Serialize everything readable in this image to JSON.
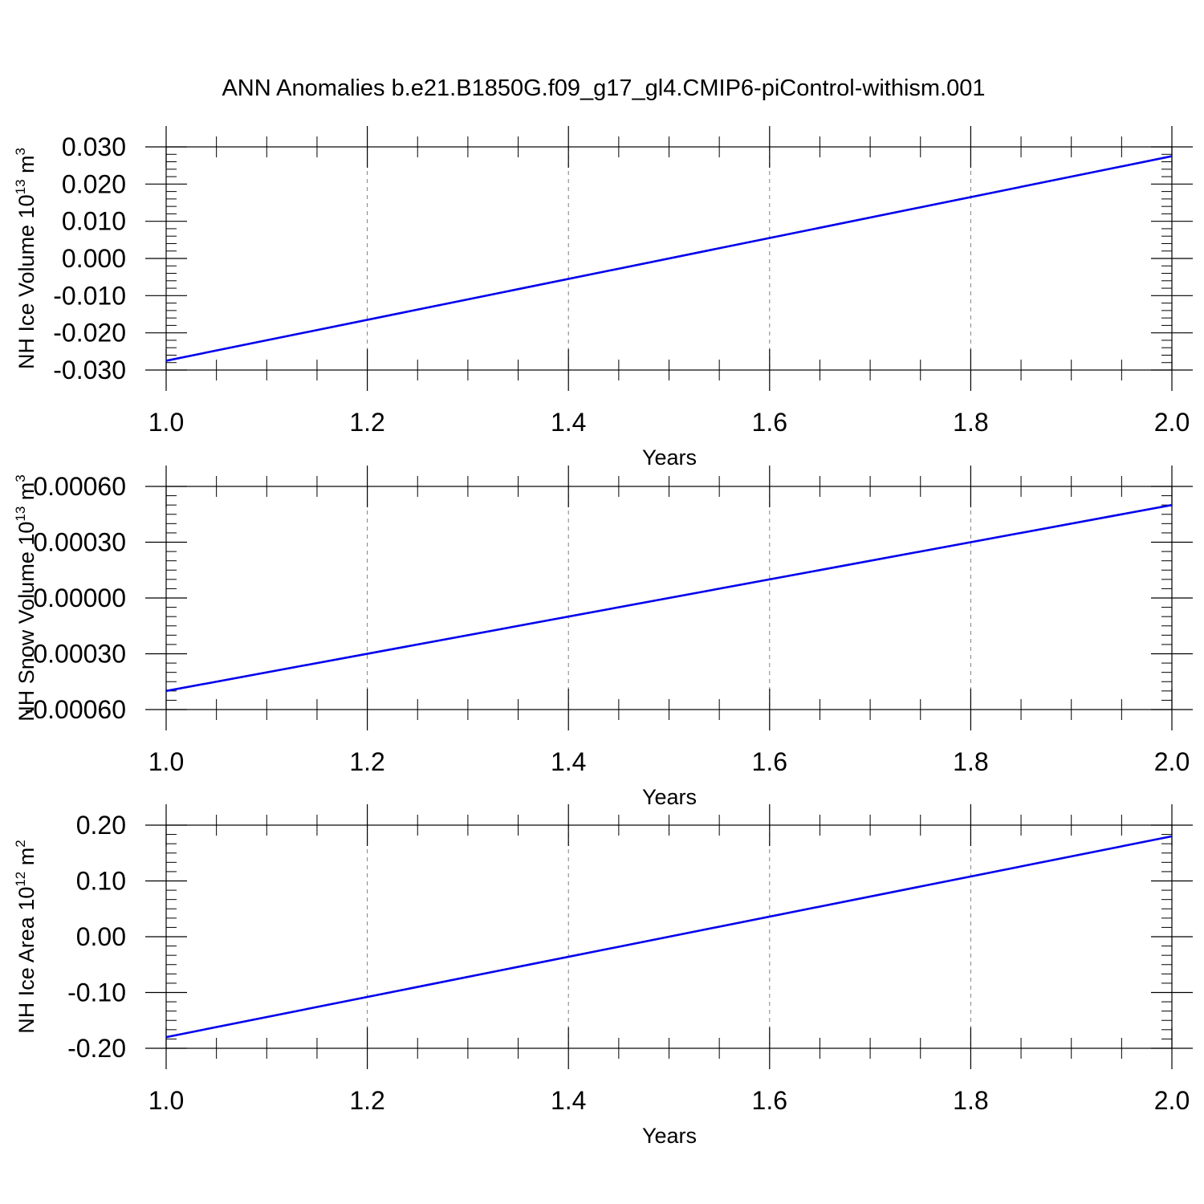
{
  "figure": {
    "title": "ANN Anomalies b.e21.B1850G.f09_g17_gl4.CMIP6-piControl-withism.001"
  },
  "colors": {
    "series": "#0000ee",
    "axes": "#000000",
    "grid": "#808080"
  },
  "chart_data": [
    {
      "type": "line",
      "title": "",
      "xlabel": "Years",
      "ylabel": {
        "text": "NH Ice Volume 10",
        "sup": "13",
        "unit": " m",
        "unit_sup": "3"
      },
      "xlim": [
        1.0,
        2.0
      ],
      "ylim": [
        -0.03,
        0.03
      ],
      "x_ticks": [
        "1.0",
        "1.2",
        "1.4",
        "1.6",
        "1.8",
        "2.0"
      ],
      "y_ticks": [
        "-0.030",
        "-0.020",
        "-0.010",
        "0.000",
        "0.010",
        "0.020",
        "0.030"
      ],
      "x_grid": "dashed-vertical",
      "series": [
        {
          "x": [
            1.0,
            2.0
          ],
          "y": [
            -0.0275,
            0.0275
          ]
        }
      ]
    },
    {
      "type": "line",
      "title": "",
      "xlabel": "Years",
      "ylabel": {
        "text": "NH Snow Volume 10",
        "sup": "13",
        "unit": " m",
        "unit_sup": "3"
      },
      "xlim": [
        1.0,
        2.0
      ],
      "ylim": [
        -0.0006,
        0.0006
      ],
      "x_ticks": [
        "1.0",
        "1.2",
        "1.4",
        "1.6",
        "1.8",
        "2.0"
      ],
      "y_ticks": [
        "-0.00060",
        "-0.00030",
        "0.00000",
        "0.00030",
        "0.00060"
      ],
      "x_grid": "dashed-vertical",
      "series": [
        {
          "x": [
            1.0,
            2.0
          ],
          "y": [
            -0.0005,
            0.0005
          ]
        }
      ]
    },
    {
      "type": "line",
      "title": "",
      "xlabel": "Years",
      "ylabel": {
        "text": "NH Ice Area 10",
        "sup": "12",
        "unit": " m",
        "unit_sup": "2"
      },
      "xlim": [
        1.0,
        2.0
      ],
      "ylim": [
        -0.2,
        0.2
      ],
      "x_ticks": [
        "1.0",
        "1.2",
        "1.4",
        "1.6",
        "1.8",
        "2.0"
      ],
      "y_ticks": [
        "-0.20",
        "-0.10",
        "0.00",
        "0.10",
        "0.20"
      ],
      "x_grid": "dashed-vertical",
      "series": [
        {
          "x": [
            1.0,
            2.0
          ],
          "y": [
            -0.18,
            0.18
          ]
        }
      ]
    }
  ]
}
